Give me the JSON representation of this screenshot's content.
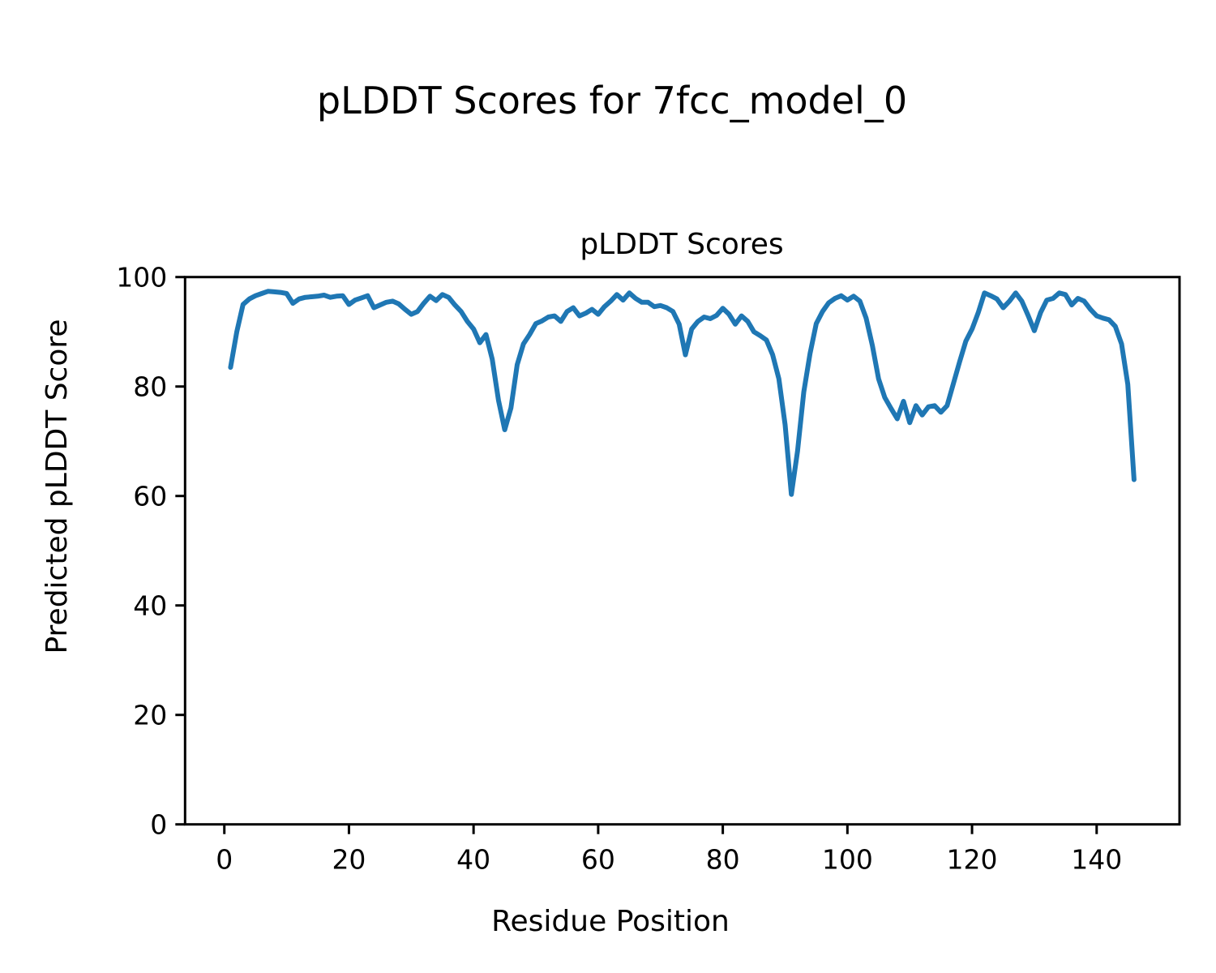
{
  "figure": {
    "suptitle": "pLDDT Scores for 7fcc_model_0"
  },
  "axes": {
    "title": "pLDDT Scores",
    "xlabel": "Residue Position",
    "ylabel": "Predicted pLDDT Score"
  },
  "chart_data": {
    "type": "line",
    "title": "pLDDT Scores",
    "xlabel": "Residue Position",
    "ylabel": "Predicted pLDDT Score",
    "series_name": "pLDDT per residue",
    "line_color": "#1f77b4",
    "grid": false,
    "legend": "none",
    "xlim": [
      -6.3,
      153.3
    ],
    "ylim": [
      0,
      100
    ],
    "xticks": [
      0,
      20,
      40,
      60,
      80,
      100,
      120,
      140
    ],
    "yticks": [
      0,
      20,
      40,
      60,
      80,
      100
    ],
    "x_start": 1,
    "x_step": 1,
    "x": [
      1,
      2,
      3,
      4,
      5,
      6,
      7,
      8,
      9,
      10,
      11,
      12,
      13,
      14,
      15,
      16,
      17,
      18,
      19,
      20,
      21,
      22,
      23,
      24,
      25,
      26,
      27,
      28,
      29,
      30,
      31,
      32,
      33,
      34,
      35,
      36,
      37,
      38,
      39,
      40,
      41,
      42,
      43,
      44,
      45,
      46,
      47,
      48,
      49,
      50,
      51,
      52,
      53,
      54,
      55,
      56,
      57,
      58,
      59,
      60,
      61,
      62,
      63,
      64,
      65,
      66,
      67,
      68,
      69,
      70,
      71,
      72,
      73,
      74,
      75,
      76,
      77,
      78,
      79,
      80,
      81,
      82,
      83,
      84,
      85,
      86,
      87,
      88,
      89,
      90,
      91,
      92,
      93,
      94,
      95,
      96,
      97,
      98,
      99,
      100,
      101,
      102,
      103,
      104,
      105,
      106,
      107,
      108,
      109,
      110,
      111,
      112,
      113,
      114,
      115,
      116,
      117,
      118,
      119,
      120,
      121,
      122,
      123,
      124,
      125,
      126,
      127,
      128,
      129,
      130,
      131,
      132,
      133,
      134,
      135,
      136,
      137,
      138,
      139,
      140,
      141,
      142,
      143,
      144,
      145,
      146
    ],
    "values": [
      83.5,
      90.0,
      95.0,
      96.0,
      96.6,
      97.0,
      97.4,
      97.3,
      97.2,
      97.0,
      95.2,
      96.0,
      96.3,
      96.4,
      96.5,
      96.7,
      96.3,
      96.5,
      96.6,
      95.0,
      95.8,
      96.2,
      96.6,
      94.4,
      94.9,
      95.4,
      95.6,
      95.1,
      94.1,
      93.2,
      93.7,
      95.2,
      96.5,
      95.7,
      96.8,
      96.3,
      94.9,
      93.7,
      91.9,
      90.5,
      88.0,
      89.5,
      85.0,
      77.5,
      72.1,
      76.1,
      84.0,
      87.8,
      89.5,
      91.5,
      92.0,
      92.7,
      92.9,
      91.9,
      93.7,
      94.4,
      92.9,
      93.4,
      94.1,
      93.2,
      94.6,
      95.6,
      96.8,
      95.8,
      97.1,
      96.1,
      95.4,
      95.4,
      94.6,
      94.8,
      94.4,
      93.7,
      91.4,
      85.8,
      90.5,
      91.9,
      92.7,
      92.4,
      93.0,
      94.3,
      93.2,
      91.4,
      92.9,
      91.9,
      90.0,
      89.3,
      88.5,
      85.8,
      81.4,
      73.0,
      60.3,
      68.2,
      79.0,
      86.0,
      91.5,
      93.7,
      95.3,
      96.1,
      96.6,
      95.8,
      96.5,
      95.6,
      92.5,
      87.5,
      81.4,
      78.0,
      76.0,
      74.1,
      77.3,
      73.4,
      76.5,
      74.8,
      76.3,
      76.5,
      75.3,
      76.5,
      80.5,
      84.5,
      88.3,
      90.5,
      93.5,
      97.1,
      96.6,
      96.0,
      94.4,
      95.6,
      97.1,
      95.6,
      93.0,
      90.2,
      93.5,
      95.8,
      96.1,
      97.1,
      96.8,
      94.9,
      96.1,
      95.6,
      94.1,
      92.9,
      92.5,
      92.2,
      91.0,
      87.8,
      80.4,
      63.0
    ]
  }
}
